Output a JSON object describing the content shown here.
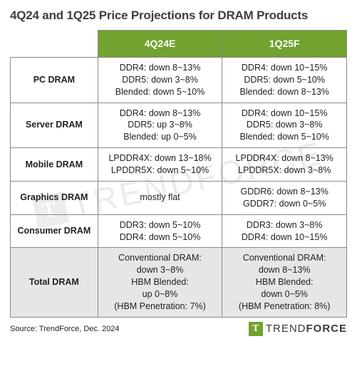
{
  "title": "4Q24 and 1Q25 Price Projections for DRAM Products",
  "colors": {
    "header_bg": "#72a22f",
    "header_text": "#ffffff",
    "border": "#8a8a8a",
    "total_bg": "#e6e6e6",
    "title_color": "#3e3e3e",
    "watermark_color": "#c8c8c8"
  },
  "columns": [
    "",
    "4Q24E",
    "1Q25F"
  ],
  "rows": [
    {
      "label": "PC DRAM",
      "q4": [
        "DDR4: down 8~13%",
        "DDR5: down 3~8%",
        "Blended: down 5~10%"
      ],
      "q1": [
        "DDR4: down 10~15%",
        "DDR5: down 5~10%",
        "Blended: down 8~13%"
      ]
    },
    {
      "label": "Server DRAM",
      "q4": [
        "DDR4: down 8~13%",
        "DDR5: up 3~8%",
        "Blended: up 0~5%"
      ],
      "q1": [
        "DDR4: down 10~15%",
        "DDR5: down 3~8%",
        "Blended: down 5~10%"
      ]
    },
    {
      "label": "Mobile DRAM",
      "q4": [
        "LPDDR4X: down 13~18%",
        "LPDDR5X: down 5~10%"
      ],
      "q1": [
        "LPDDR4X: down 8~13%",
        "LPDDR5X: down 3~8%"
      ]
    },
    {
      "label": "Graphics DRAM",
      "q4": [
        "mostly flat"
      ],
      "q1": [
        "GDDR6: down 8~13%",
        "GDDR7: down 0~5%"
      ]
    },
    {
      "label": "Consumer DRAM",
      "q4": [
        "DDR3: down 5~10%",
        "DDR4: down 5~10%"
      ],
      "q1": [
        "DDR3: down 3~8%",
        "DDR4: down 10~15%"
      ]
    }
  ],
  "total": {
    "label": "Total DRAM",
    "q4": [
      "Conventional DRAM:",
      "down 3~8%",
      "HBM Blended:",
      "up 0~8%",
      "(HBM Penetration: 7%)"
    ],
    "q1": [
      "Conventional DRAM:",
      "down 8~13%",
      "HBM Blended:",
      "down 0~5%",
      "(HBM Penetration: 8%)"
    ]
  },
  "source": "Source: TrendForce, Dec. 2024",
  "brand": {
    "mark": "T",
    "name_light": "TREND",
    "name_bold": "FORCE"
  },
  "watermark": {
    "mark": "T",
    "text": "TRENDFORCE"
  }
}
